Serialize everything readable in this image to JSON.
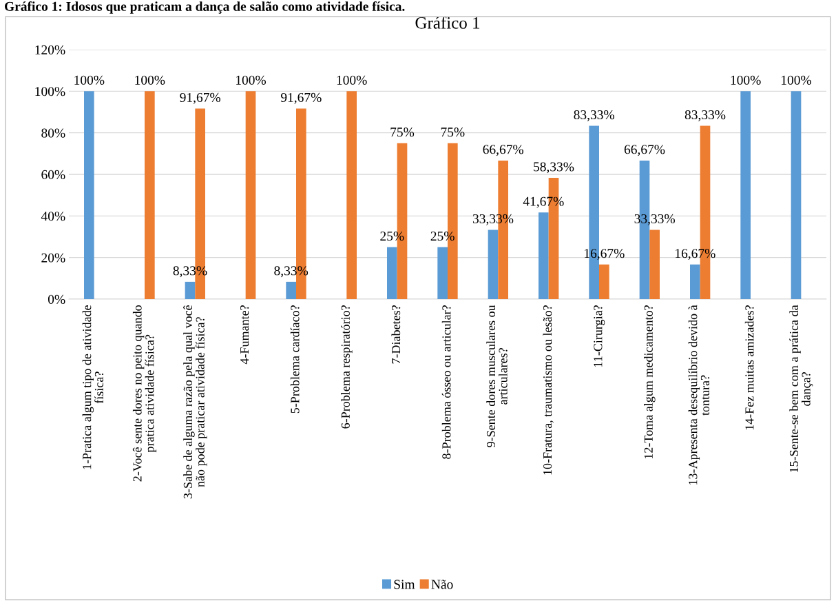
{
  "chart_data": {
    "type": "bar",
    "title": "Gráfico 1",
    "annotations": [
      "Gráfico 1: Idosos que praticam a dança de salão como atividade física."
    ],
    "categories": [
      "1-Pratica algum tipo de atividade\nfísica?",
      "2-Você sente dores no peito quando\npratica atividade física?",
      "3-Sabe de alguma razão pela qual você\nnão pode praticar atividade física?",
      "4-Fumante?",
      "5-Problema cardíaco?",
      "6-Problema respiratório?",
      "7-Diabetes?",
      "8-Problema ósseo ou articular?",
      "9-Sente dores musculares ou\narticulares?",
      "10-Fratura, traumatismo ou lesão?",
      "11-Cirurgia?",
      "12-Toma algum medicamento?",
      "13-Apresenta desequilíbrio devido à\ntontura?",
      "14-Fez muitas amizades?",
      "15-Sente-se bem com a prática da\ndança?"
    ],
    "series": [
      {
        "name": "Sim",
        "color": "#5b9bd5",
        "values": [
          100,
          0,
          8.33,
          0,
          8.33,
          0,
          25,
          25,
          33.33,
          41.67,
          83.33,
          66.67,
          16.67,
          100,
          100
        ],
        "value_labels": [
          "100%",
          null,
          "8,33%",
          null,
          "8,33%",
          null,
          "25%",
          "25%",
          "33,33%",
          "41,67%",
          "83,33%",
          "66,67%",
          "16,67%",
          "100%",
          "100%"
        ]
      },
      {
        "name": "Não",
        "color": "#ed7d31",
        "values": [
          0,
          100,
          91.67,
          100,
          91.67,
          100,
          75,
          75,
          66.67,
          58.33,
          16.67,
          33.33,
          83.33,
          0,
          0
        ],
        "value_labels": [
          null,
          "100%",
          "91,67%",
          "100%",
          "91,67%",
          "100%",
          "75%",
          "75%",
          "66,67%",
          "58,33%",
          "16,67%",
          "33,33%",
          "83,33%",
          null,
          null
        ]
      }
    ],
    "ylim": [
      0,
      120
    ],
    "yticks": [
      {
        "value": 0,
        "label": "0%"
      },
      {
        "value": 20,
        "label": "20%"
      },
      {
        "value": 40,
        "label": "40%"
      },
      {
        "value": 60,
        "label": "60%"
      },
      {
        "value": 80,
        "label": "80%"
      },
      {
        "value": 100,
        "label": "100%"
      },
      {
        "value": 120,
        "label": "120%"
      }
    ],
    "grid": "y",
    "legend": "bottom"
  }
}
